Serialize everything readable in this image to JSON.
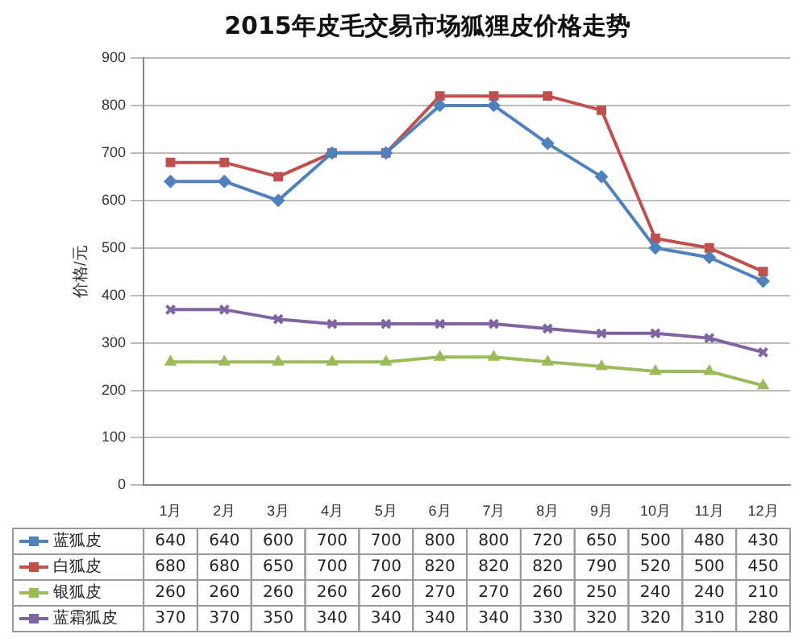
{
  "chart_data": {
    "type": "line",
    "title": "2015年皮毛交易市场狐狸皮价格走势",
    "ylabel": "价格/元",
    "categories": [
      "1月",
      "2月",
      "3月",
      "4月",
      "5月",
      "6月",
      "7月",
      "8月",
      "9月",
      "10月",
      "11月",
      "12月"
    ],
    "series": [
      {
        "name": "蓝狐皮",
        "color": "#4f81bd",
        "marker": "diamond",
        "values": [
          640,
          640,
          600,
          700,
          700,
          800,
          800,
          720,
          650,
          500,
          480,
          430
        ]
      },
      {
        "name": "白狐皮",
        "color": "#c0504d",
        "marker": "square",
        "values": [
          680,
          680,
          650,
          700,
          700,
          820,
          820,
          820,
          790,
          520,
          500,
          450
        ]
      },
      {
        "name": "银狐皮",
        "color": "#9bbb59",
        "marker": "triangle",
        "values": [
          260,
          260,
          260,
          260,
          260,
          270,
          270,
          260,
          250,
          240,
          240,
          210
        ]
      },
      {
        "name": "蓝霜狐皮",
        "color": "#8064a2",
        "marker": "cross",
        "values": [
          370,
          370,
          350,
          340,
          340,
          340,
          340,
          330,
          320,
          320,
          310,
          280
        ]
      }
    ],
    "ylim": [
      0,
      900
    ],
    "yticks": [
      0,
      100,
      200,
      300,
      400,
      500,
      600,
      700,
      800,
      900
    ],
    "grid": "y",
    "legend": "bottom",
    "data_labels": true
  }
}
